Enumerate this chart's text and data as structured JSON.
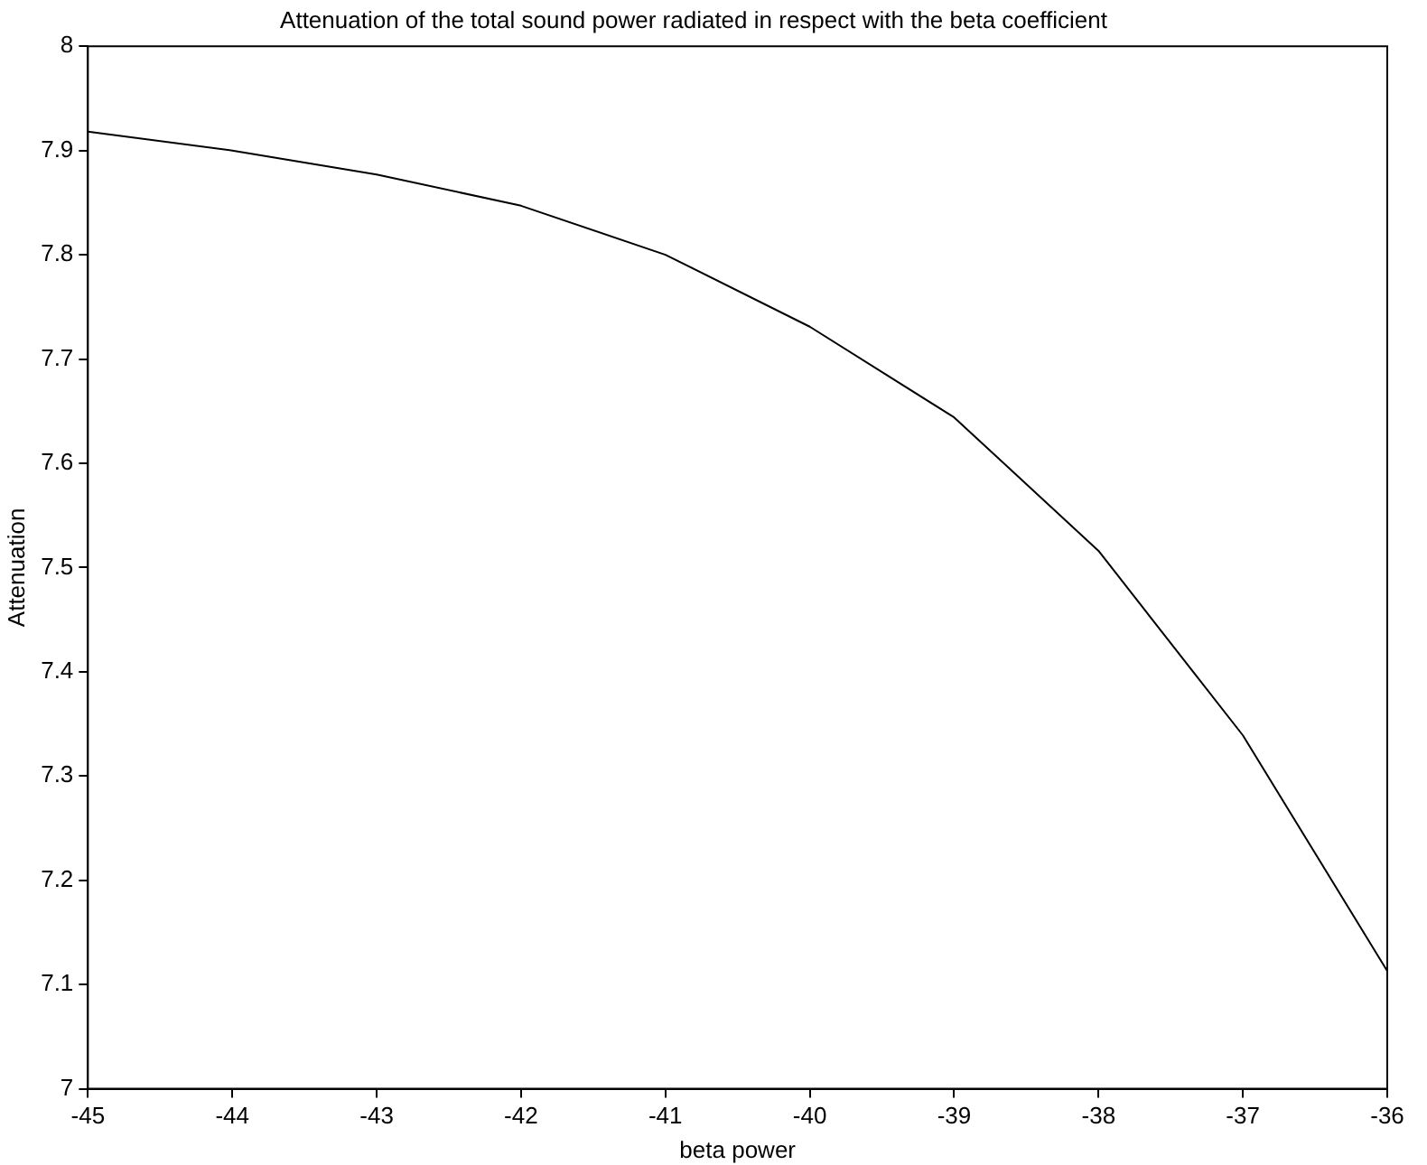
{
  "chart_data": {
    "type": "line",
    "title": "Attenuation of the total sound power radiated in respect with the beta coefficient",
    "xlabel": "beta power",
    "ylabel": "Attenuation",
    "x": [
      -45,
      -44,
      -43,
      -42,
      -41,
      -40,
      -39,
      -38,
      -37,
      -36
    ],
    "series": [
      {
        "color": "#000000",
        "values": [
          7.918,
          7.9,
          7.877,
          7.847,
          7.8,
          7.731,
          7.644,
          7.516,
          7.339,
          7.113
        ]
      }
    ],
    "xlim": [
      -45,
      -36
    ],
    "xticks": [
      -45,
      -44,
      -43,
      -42,
      -41,
      -40,
      -39,
      -38,
      -37,
      -36
    ],
    "ylim": [
      7,
      8
    ],
    "yticks": [
      7,
      7.1,
      7.2,
      7.3,
      7.4,
      7.5,
      7.6,
      7.7,
      7.8,
      7.9,
      8
    ],
    "grid": false,
    "legend": false,
    "marker": "none",
    "line_style": "solid"
  }
}
